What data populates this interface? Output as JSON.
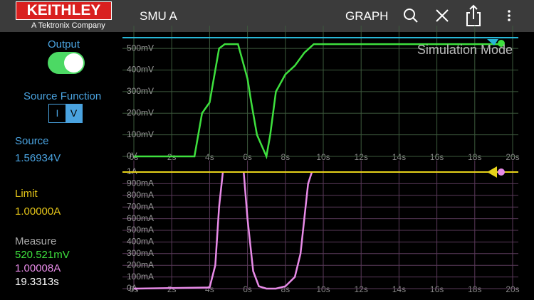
{
  "header": {
    "brand": "KEITHLEY",
    "tagline": "A Tektronix Company",
    "title": "SMU A",
    "graph_button": "GRAPH"
  },
  "sidebar": {
    "output_label": "Output",
    "source_function_label": "Source Function",
    "source_function_options": [
      "I",
      "V"
    ],
    "source_label": "Source",
    "source_value": "1.56934V",
    "limit_label": "Limit",
    "limit_value": "1.00000A",
    "measure_label": "Measure",
    "measure_values": [
      "520.521mV",
      "1.00008A",
      "19.3313s"
    ]
  },
  "graph": {
    "watermark": "Simulation Mode",
    "voltage_plot": {
      "type": "line",
      "color": "#3ee03e",
      "grid_color": "#3d5a3d",
      "x": [
        0,
        3.2,
        3.6,
        4,
        4.5,
        4.8,
        5,
        5.5,
        6,
        6.2,
        6.5,
        7,
        7.2,
        7.5,
        8,
        8.5,
        9,
        9.5,
        10,
        12,
        14,
        16,
        18,
        19.5
      ],
      "values": [
        0,
        0,
        200,
        250,
        500,
        520,
        520,
        520,
        360,
        250,
        100,
        0,
        100,
        300,
        380,
        420,
        480,
        520,
        520,
        520,
        520,
        520,
        520,
        520
      ],
      "xlim": [
        0,
        20
      ],
      "xticks": [
        {
          "value": 0,
          "label": "0s"
        },
        {
          "value": 2,
          "label": "2s"
        },
        {
          "value": 4,
          "label": "4s"
        },
        {
          "value": 6,
          "label": "6s"
        },
        {
          "value": 8,
          "label": "8s"
        },
        {
          "value": 10,
          "label": "10s"
        },
        {
          "value": 12,
          "label": "12s"
        },
        {
          "value": 14,
          "label": "14s"
        },
        {
          "value": 16,
          "label": "16s"
        },
        {
          "value": 18,
          "label": "18s"
        },
        {
          "value": 20,
          "label": "20s"
        }
      ],
      "ylim": [
        0,
        550
      ],
      "yticks": [
        {
          "value": 0,
          "label": "0V"
        },
        {
          "value": 100,
          "label": "100mV"
        },
        {
          "value": 200,
          "label": "200mV"
        },
        {
          "value": 300,
          "label": "300mV"
        },
        {
          "value": 400,
          "label": "400mV"
        },
        {
          "value": 500,
          "label": "500mV"
        }
      ]
    },
    "current_plot": {
      "type": "line",
      "color": "#e88be8",
      "grid_color": "#5a3a5a",
      "x": [
        0,
        4,
        4.3,
        4.5,
        4.7,
        5,
        5.8,
        6,
        6.3,
        6.6,
        7,
        7.5,
        8,
        8.5,
        8.8,
        9,
        9.2,
        9.4
      ],
      "values": [
        0,
        10,
        200,
        700,
        1000,
        null,
        1000,
        600,
        150,
        20,
        0,
        0,
        20,
        100,
        300,
        600,
        900,
        1000
      ],
      "xlim": [
        0,
        20
      ],
      "xticks": [
        {
          "value": 0,
          "label": "0s"
        },
        {
          "value": 2,
          "label": "2s"
        },
        {
          "value": 4,
          "label": "4s"
        },
        {
          "value": 6,
          "label": "6s"
        },
        {
          "value": 8,
          "label": "8s"
        },
        {
          "value": 10,
          "label": "10s"
        },
        {
          "value": 12,
          "label": "12s"
        },
        {
          "value": 14,
          "label": "14s"
        },
        {
          "value": 16,
          "label": "16s"
        },
        {
          "value": 18,
          "label": "18s"
        },
        {
          "value": 20,
          "label": "20s"
        }
      ],
      "ylim": [
        0,
        1000
      ],
      "yticks": [
        {
          "value": 0,
          "label": "0A"
        },
        {
          "value": 100,
          "label": "100mA"
        },
        {
          "value": 200,
          "label": "200mA"
        },
        {
          "value": 300,
          "label": "300mA"
        },
        {
          "value": 400,
          "label": "400mA"
        },
        {
          "value": 500,
          "label": "500mA"
        },
        {
          "value": 600,
          "label": "600mA"
        },
        {
          "value": 700,
          "label": "700mA"
        },
        {
          "value": 800,
          "label": "800mA"
        },
        {
          "value": 900,
          "label": "900mA"
        },
        {
          "value": 1000,
          "label": "1A"
        }
      ]
    }
  }
}
